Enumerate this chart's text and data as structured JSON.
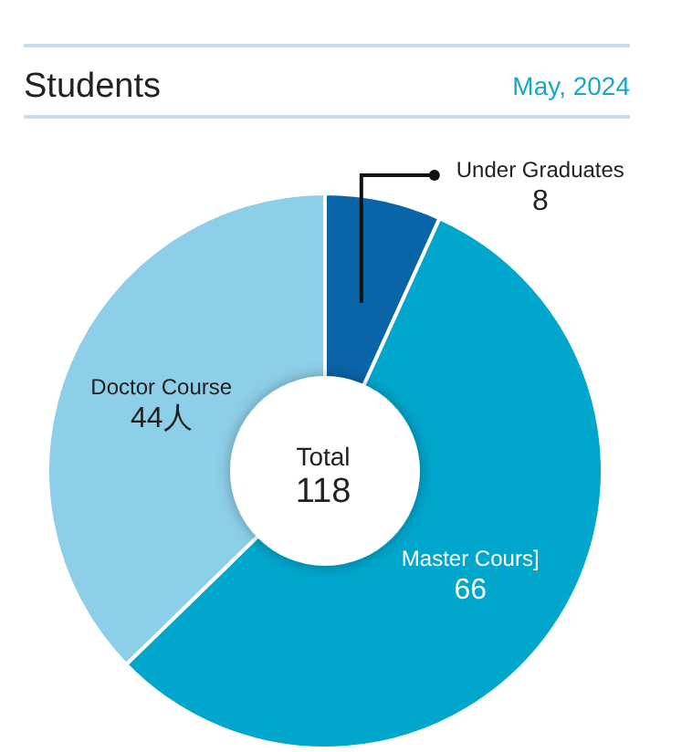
{
  "chart_data": {
    "type": "donut",
    "title": "Students",
    "subtitle": "May, 2024",
    "categories": [
      "Under Graduates",
      "Master Cours]",
      "Doctor Course"
    ],
    "values": [
      8,
      66,
      44
    ],
    "value_labels": [
      "8",
      "66",
      "44人"
    ],
    "colors": [
      "#0a64a8",
      "#00a6cc",
      "#8dcfe8"
    ],
    "annotations": [
      "Total",
      "118"
    ]
  }
}
